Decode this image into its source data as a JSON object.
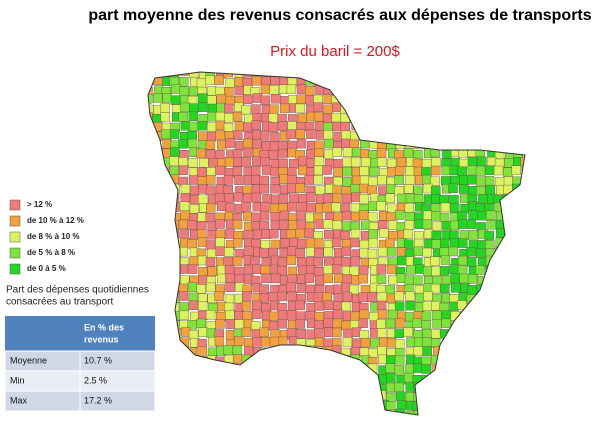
{
  "header": {
    "title": "part moyenne des revenus consacrés aux dépenses de transports",
    "subtitle": "Prix du baril = 200$"
  },
  "legend": {
    "items": [
      {
        "label": "> 12 %",
        "color": "#ee7a7a"
      },
      {
        "label": "de 10 % à 12 %",
        "color": "#f2a23c"
      },
      {
        "label": "de 8 % à 10 %",
        "color": "#dcf25e"
      },
      {
        "label": "de 5 % à 8 %",
        "color": "#7ee43c"
      },
      {
        "label": "de 0 à 5 %",
        "color": "#22d622"
      }
    ]
  },
  "note": {
    "lines": [
      "Part des dépenses quotidiennes",
      "consacrées au transport"
    ]
  },
  "table": {
    "header": [
      "En % des",
      "revenus"
    ],
    "rows": [
      [
        "Moyenne",
        "10.7 %"
      ],
      [
        "Min",
        "2.5 %"
      ],
      [
        "Max",
        "17.2 %"
      ]
    ]
  }
}
